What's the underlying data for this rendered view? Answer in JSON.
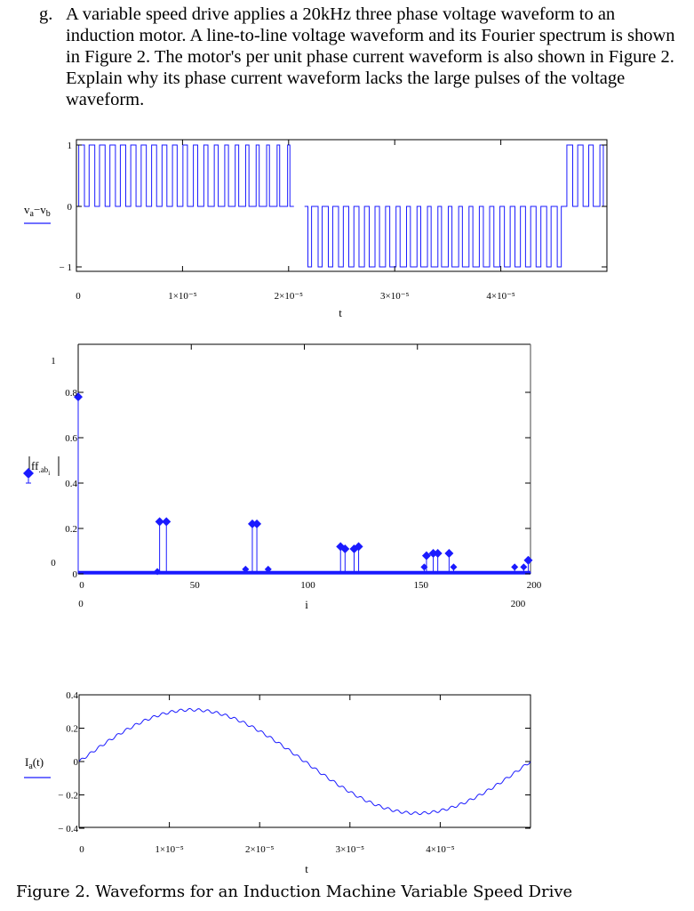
{
  "question": {
    "label": "g.",
    "text": "A variable speed drive applies a 20kHz three phase voltage waveform to an induction motor.  A line-to-line voltage waveform and its Fourier spectrum is shown in Figure 2.  The motor's per unit phase current waveform is also shown in Figure 2.  Explain why its phase current waveform lacks the large pulses of the voltage waveform."
  },
  "caption": "Figure 2.  Waveforms for an Induction Machine Variable Speed Drive",
  "colors": {
    "trace": "#1a1aff",
    "axis": "#000000",
    "frame": "#555555"
  },
  "chart_data": [
    {
      "type": "line",
      "title": "",
      "ylabel": "va−vb",
      "xlabel": "t",
      "xlim": [
        0,
        5e-05
      ],
      "ylim": [
        -1,
        1
      ],
      "x_ticks": [
        "0",
        "1×10⁻⁵",
        "2×10⁻⁵",
        "3×10⁻⁵",
        "4×10⁻⁵"
      ],
      "y_ticks": [
        "1",
        "0",
        "− 1"
      ],
      "description": "PWM line-to-line voltage: pulses between 0 and +1 for t≈0–2.05e-5 s, pulses between 0 and −1 for t≈2.15e-5–4.6e-5 s, pulses between 0 and +1 again for t≈4.6e-5–5e-5 s",
      "segments": [
        {
          "t_start": 0.0,
          "t_end": 2.05e-05,
          "level": 1
        },
        {
          "t_start": 2.15e-05,
          "t_end": 4.6e-05,
          "level": -1
        },
        {
          "t_start": 4.6e-05,
          "t_end": 5e-05,
          "level": 1
        }
      ]
    },
    {
      "type": "scatter",
      "title": "",
      "ylabel": "|ff.ab_i|",
      "xlabel": "i",
      "xlim": [
        0,
        200
      ],
      "ylim": [
        0,
        1
      ],
      "x_ticks": [
        "0",
        "50",
        "100",
        "150",
        "200"
      ],
      "y_ticks": [
        "0.8",
        "0.6",
        "0.4",
        "0.2",
        "0"
      ],
      "extra_labels": {
        "y_top": "1",
        "y_bottom": "0",
        "x_left": "0",
        "x_right": "200"
      },
      "stem": true,
      "points": [
        {
          "i": 0,
          "value": 0.78
        },
        {
          "i": 36,
          "value": 0.23
        },
        {
          "i": 39,
          "value": 0.23
        },
        {
          "i": 77,
          "value": 0.22
        },
        {
          "i": 79,
          "value": 0.22
        },
        {
          "i": 116,
          "value": 0.12
        },
        {
          "i": 118,
          "value": 0.11
        },
        {
          "i": 122,
          "value": 0.11
        },
        {
          "i": 124,
          "value": 0.12
        },
        {
          "i": 154,
          "value": 0.08
        },
        {
          "i": 157,
          "value": 0.09
        },
        {
          "i": 159,
          "value": 0.09
        },
        {
          "i": 164,
          "value": 0.09
        },
        {
          "i": 199,
          "value": 0.06
        },
        {
          "i": 35,
          "value": 0.01
        },
        {
          "i": 74,
          "value": 0.02
        },
        {
          "i": 84,
          "value": 0.02
        },
        {
          "i": 153,
          "value": 0.03
        },
        {
          "i": 166,
          "value": 0.03
        },
        {
          "i": 193,
          "value": 0.03
        },
        {
          "i": 197,
          "value": 0.03
        }
      ],
      "baseline_value": 0.005
    },
    {
      "type": "line",
      "title": "",
      "ylabel": "Ia(t)",
      "xlabel": "t",
      "xlim": [
        0,
        5e-05
      ],
      "ylim": [
        -0.4,
        0.4
      ],
      "x_ticks": [
        "0",
        "1×10⁻⁵",
        "2×10⁻⁵",
        "3×10⁻⁵",
        "4×10⁻⁵"
      ],
      "y_ticks": [
        "0.4",
        "0.2",
        "0",
        "− 0.2",
        "− 0.4"
      ],
      "description": "Near-sinusoidal phase current with small ripple, amplitude ≈0.31, one full cycle over 5e-5 s",
      "amplitude": 0.31,
      "period": 5e-05,
      "ripple": 0.008
    }
  ]
}
